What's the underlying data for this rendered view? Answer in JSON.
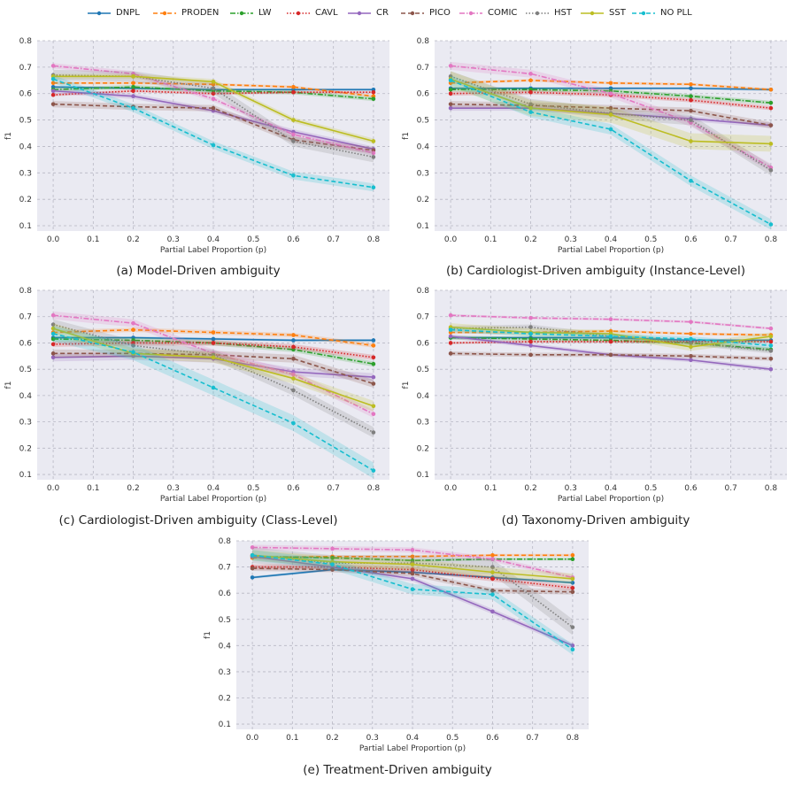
{
  "colors": {
    "DNPL": "#1f77b4",
    "PRODEN": "#ff7f0e",
    "LW": "#2ca02c",
    "CAVL": "#d62728",
    "CR": "#9467bd",
    "PICO": "#8c564b",
    "COMIC": "#e377c2",
    "HST": "#7f7f7f",
    "SST": "#bcbd22",
    "NO PLL": "#17becf"
  },
  "legend": [
    {
      "name": "DNPL",
      "dash": "solid"
    },
    {
      "name": "PRODEN",
      "dash": "dashed"
    },
    {
      "name": "LW",
      "dash": "dashdot"
    },
    {
      "name": "CAVL",
      "dash": "dotted"
    },
    {
      "name": "CR",
      "dash": "solid"
    },
    {
      "name": "PICO",
      "dash": "dashed"
    },
    {
      "name": "COMIC",
      "dash": "dashdot"
    },
    {
      "name": "HST",
      "dash": "dotted"
    },
    {
      "name": "SST",
      "dash": "solid"
    },
    {
      "name": "NO PLL",
      "dash": "dashed"
    }
  ],
  "chart_data": [
    {
      "type": "line",
      "caption": "(a) Model-Driven ambiguity",
      "xlabel": "Partial Label Proportion (p)",
      "ylabel": "f1",
      "x": [
        0.0,
        0.2,
        0.4,
        0.6,
        0.8
      ],
      "xticks": [
        "0.0",
        "0.1",
        "0.2",
        "0.3",
        "0.4",
        "0.5",
        "0.6",
        "0.7",
        "0.8"
      ],
      "yticks": [
        "0.1",
        "0.2",
        "0.3",
        "0.4",
        "0.5",
        "0.6",
        "0.7",
        "0.8"
      ],
      "xlim": [
        -0.04,
        0.84
      ],
      "ylim": [
        0.08,
        0.8
      ],
      "series": [
        {
          "name": "DNPL",
          "values": [
            0.625,
            0.62,
            0.615,
            0.615,
            0.615
          ],
          "band": 0.005
        },
        {
          "name": "PRODEN",
          "values": [
            0.64,
            0.64,
            0.635,
            0.625,
            0.59
          ],
          "band": 0.005
        },
        {
          "name": "LW",
          "values": [
            0.615,
            0.625,
            0.61,
            0.605,
            0.58
          ],
          "band": 0.008
        },
        {
          "name": "CAVL",
          "values": [
            0.595,
            0.61,
            0.6,
            0.605,
            0.605
          ],
          "band": 0.005
        },
        {
          "name": "CR",
          "values": [
            0.61,
            0.59,
            0.535,
            0.455,
            0.39
          ],
          "band": 0.01
        },
        {
          "name": "PICO",
          "values": [
            0.56,
            0.55,
            0.545,
            0.425,
            0.385
          ],
          "band": 0.012
        },
        {
          "name": "COMIC",
          "values": [
            0.705,
            0.675,
            0.58,
            0.445,
            0.375
          ],
          "band": 0.01
        },
        {
          "name": "HST",
          "values": [
            0.67,
            0.665,
            0.62,
            0.42,
            0.36
          ],
          "band": 0.02
        },
        {
          "name": "SST",
          "values": [
            0.665,
            0.665,
            0.645,
            0.5,
            0.42
          ],
          "band": 0.01
        },
        {
          "name": "NO PLL",
          "values": [
            0.655,
            0.545,
            0.405,
            0.29,
            0.245
          ],
          "band": 0.015
        }
      ]
    },
    {
      "type": "line",
      "caption": "(b) Cardiologist-Driven ambiguity (Instance-Level)",
      "xlabel": "Partial Label Proportion (p)",
      "ylabel": "f1",
      "x": [
        0.0,
        0.2,
        0.4,
        0.6,
        0.8
      ],
      "xticks": [
        "0.0",
        "0.1",
        "0.2",
        "0.3",
        "0.4",
        "0.5",
        "0.6",
        "0.7",
        "0.8"
      ],
      "yticks": [
        "0.1",
        "0.2",
        "0.3",
        "0.4",
        "0.5",
        "0.6",
        "0.7",
        "0.8"
      ],
      "xlim": [
        -0.04,
        0.84
      ],
      "ylim": [
        0.08,
        0.8
      ],
      "series": [
        {
          "name": "DNPL",
          "values": [
            0.62,
            0.62,
            0.62,
            0.62,
            0.615
          ],
          "band": 0.005
        },
        {
          "name": "PRODEN",
          "values": [
            0.64,
            0.65,
            0.64,
            0.635,
            0.615
          ],
          "band": 0.005
        },
        {
          "name": "LW",
          "values": [
            0.615,
            0.615,
            0.61,
            0.59,
            0.565
          ],
          "band": 0.008
        },
        {
          "name": "CAVL",
          "values": [
            0.6,
            0.605,
            0.595,
            0.575,
            0.545
          ],
          "band": 0.008
        },
        {
          "name": "CR",
          "values": [
            0.545,
            0.545,
            0.525,
            0.505,
            0.48
          ],
          "band": 0.01
        },
        {
          "name": "PICO",
          "values": [
            0.56,
            0.555,
            0.545,
            0.535,
            0.48
          ],
          "band": 0.012
        },
        {
          "name": "COMIC",
          "values": [
            0.705,
            0.675,
            0.6,
            0.49,
            0.32
          ],
          "band": 0.015
        },
        {
          "name": "HST",
          "values": [
            0.665,
            0.56,
            0.525,
            0.5,
            0.31
          ],
          "band": 0.02
        },
        {
          "name": "SST",
          "values": [
            0.655,
            0.545,
            0.52,
            0.42,
            0.41
          ],
          "band": 0.03
        },
        {
          "name": "NO PLL",
          "values": [
            0.65,
            0.53,
            0.465,
            0.27,
            0.105
          ],
          "band": 0.02
        }
      ]
    },
    {
      "type": "line",
      "caption": "(c) Cardiologist-Driven ambiguity (Class-Level)",
      "xlabel": "Partial Label Proportion (p)",
      "ylabel": "f1",
      "x": [
        0.0,
        0.2,
        0.4,
        0.6,
        0.8
      ],
      "xticks": [
        "0.0",
        "0.1",
        "0.2",
        "0.3",
        "0.4",
        "0.5",
        "0.6",
        "0.7",
        "0.8"
      ],
      "yticks": [
        "0.1",
        "0.2",
        "0.3",
        "0.4",
        "0.5",
        "0.6",
        "0.7",
        "0.8"
      ],
      "xlim": [
        -0.04,
        0.84
      ],
      "ylim": [
        0.08,
        0.8
      ],
      "series": [
        {
          "name": "DNPL",
          "values": [
            0.62,
            0.62,
            0.615,
            0.61,
            0.61
          ],
          "band": 0.005
        },
        {
          "name": "PRODEN",
          "values": [
            0.64,
            0.65,
            0.64,
            0.63,
            0.59
          ],
          "band": 0.008
        },
        {
          "name": "LW",
          "values": [
            0.615,
            0.61,
            0.6,
            0.575,
            0.52
          ],
          "band": 0.01
        },
        {
          "name": "CAVL",
          "values": [
            0.595,
            0.6,
            0.6,
            0.585,
            0.545
          ],
          "band": 0.01
        },
        {
          "name": "CR",
          "values": [
            0.545,
            0.55,
            0.54,
            0.49,
            0.47
          ],
          "band": 0.015
        },
        {
          "name": "PICO",
          "values": [
            0.56,
            0.56,
            0.555,
            0.54,
            0.445
          ],
          "band": 0.015
        },
        {
          "name": "COMIC",
          "values": [
            0.705,
            0.675,
            0.56,
            0.48,
            0.33
          ],
          "band": 0.015
        },
        {
          "name": "HST",
          "values": [
            0.67,
            0.59,
            0.555,
            0.42,
            0.26
          ],
          "band": 0.02
        },
        {
          "name": "SST",
          "values": [
            0.655,
            0.56,
            0.545,
            0.465,
            0.36
          ],
          "band": 0.02
        },
        {
          "name": "NO PLL",
          "values": [
            0.635,
            0.565,
            0.43,
            0.295,
            0.115
          ],
          "band": 0.03
        }
      ]
    },
    {
      "type": "line",
      "caption": "(d) Taxonomy-Driven ambiguity",
      "xlabel": "Partial Label Proportion (p)",
      "ylabel": "f1",
      "x": [
        0.0,
        0.2,
        0.4,
        0.6,
        0.8
      ],
      "xticks": [
        "0.0",
        "0.1",
        "0.2",
        "0.3",
        "0.4",
        "0.5",
        "0.6",
        "0.7",
        "0.8"
      ],
      "yticks": [
        "0.1",
        "0.2",
        "0.3",
        "0.4",
        "0.5",
        "0.6",
        "0.7",
        "0.8"
      ],
      "xlim": [
        -0.04,
        0.84
      ],
      "ylim": [
        0.08,
        0.8
      ],
      "series": [
        {
          "name": "DNPL",
          "values": [
            0.62,
            0.62,
            0.62,
            0.61,
            0.61
          ],
          "band": 0.005
        },
        {
          "name": "PRODEN",
          "values": [
            0.64,
            0.64,
            0.645,
            0.635,
            0.63
          ],
          "band": 0.005
        },
        {
          "name": "LW",
          "values": [
            0.62,
            0.615,
            0.61,
            0.6,
            0.575
          ],
          "band": 0.008
        },
        {
          "name": "CAVL",
          "values": [
            0.6,
            0.605,
            0.605,
            0.605,
            0.605
          ],
          "band": 0.005
        },
        {
          "name": "CR",
          "values": [
            0.625,
            0.59,
            0.555,
            0.535,
            0.5
          ],
          "band": 0.008
        },
        {
          "name": "PICO",
          "values": [
            0.56,
            0.555,
            0.555,
            0.55,
            0.54
          ],
          "band": 0.008
        },
        {
          "name": "COMIC",
          "values": [
            0.705,
            0.695,
            0.69,
            0.68,
            0.655
          ],
          "band": 0.005
        },
        {
          "name": "HST",
          "values": [
            0.655,
            0.66,
            0.625,
            0.6,
            0.57
          ],
          "band": 0.01
        },
        {
          "name": "SST",
          "values": [
            0.66,
            0.64,
            0.635,
            0.585,
            0.625
          ],
          "band": 0.015
        },
        {
          "name": "NO PLL",
          "values": [
            0.65,
            0.635,
            0.625,
            0.615,
            0.59
          ],
          "band": 0.01
        }
      ]
    },
    {
      "type": "line",
      "caption": "(e) Treatment-Driven ambiguity",
      "xlabel": "Partial Label Proportion (p)",
      "ylabel": "f1",
      "x": [
        0.0,
        0.2,
        0.4,
        0.6,
        0.8
      ],
      "xticks": [
        "0.0",
        "0.1",
        "0.2",
        "0.3",
        "0.4",
        "0.5",
        "0.6",
        "0.7",
        "0.8"
      ],
      "yticks": [
        "0.1",
        "0.2",
        "0.3",
        "0.4",
        "0.5",
        "0.6",
        "0.7",
        "0.8"
      ],
      "xlim": [
        -0.04,
        0.84
      ],
      "ylim": [
        0.08,
        0.8
      ],
      "series": [
        {
          "name": "DNPL",
          "values": [
            0.66,
            0.69,
            0.68,
            0.66,
            0.64
          ],
          "band": 0.005
        },
        {
          "name": "PRODEN",
          "values": [
            0.735,
            0.74,
            0.74,
            0.745,
            0.745
          ],
          "band": 0.005
        },
        {
          "name": "LW",
          "values": [
            0.74,
            0.735,
            0.725,
            0.73,
            0.73
          ],
          "band": 0.005
        },
        {
          "name": "CAVL",
          "values": [
            0.7,
            0.7,
            0.69,
            0.655,
            0.62
          ],
          "band": 0.01
        },
        {
          "name": "CR",
          "values": [
            0.74,
            0.7,
            0.655,
            0.53,
            0.4
          ],
          "band": 0.01
        },
        {
          "name": "PICO",
          "values": [
            0.695,
            0.69,
            0.675,
            0.61,
            0.605
          ],
          "band": 0.01
        },
        {
          "name": "COMIC",
          "values": [
            0.775,
            0.77,
            0.765,
            0.73,
            0.66
          ],
          "band": 0.01
        },
        {
          "name": "HST",
          "values": [
            0.745,
            0.715,
            0.715,
            0.7,
            0.47
          ],
          "band": 0.03
        },
        {
          "name": "SST",
          "values": [
            0.745,
            0.72,
            0.71,
            0.68,
            0.655
          ],
          "band": 0.02
        },
        {
          "name": "NO PLL",
          "values": [
            0.745,
            0.71,
            0.615,
            0.595,
            0.385
          ],
          "band": 0.02
        }
      ]
    }
  ]
}
